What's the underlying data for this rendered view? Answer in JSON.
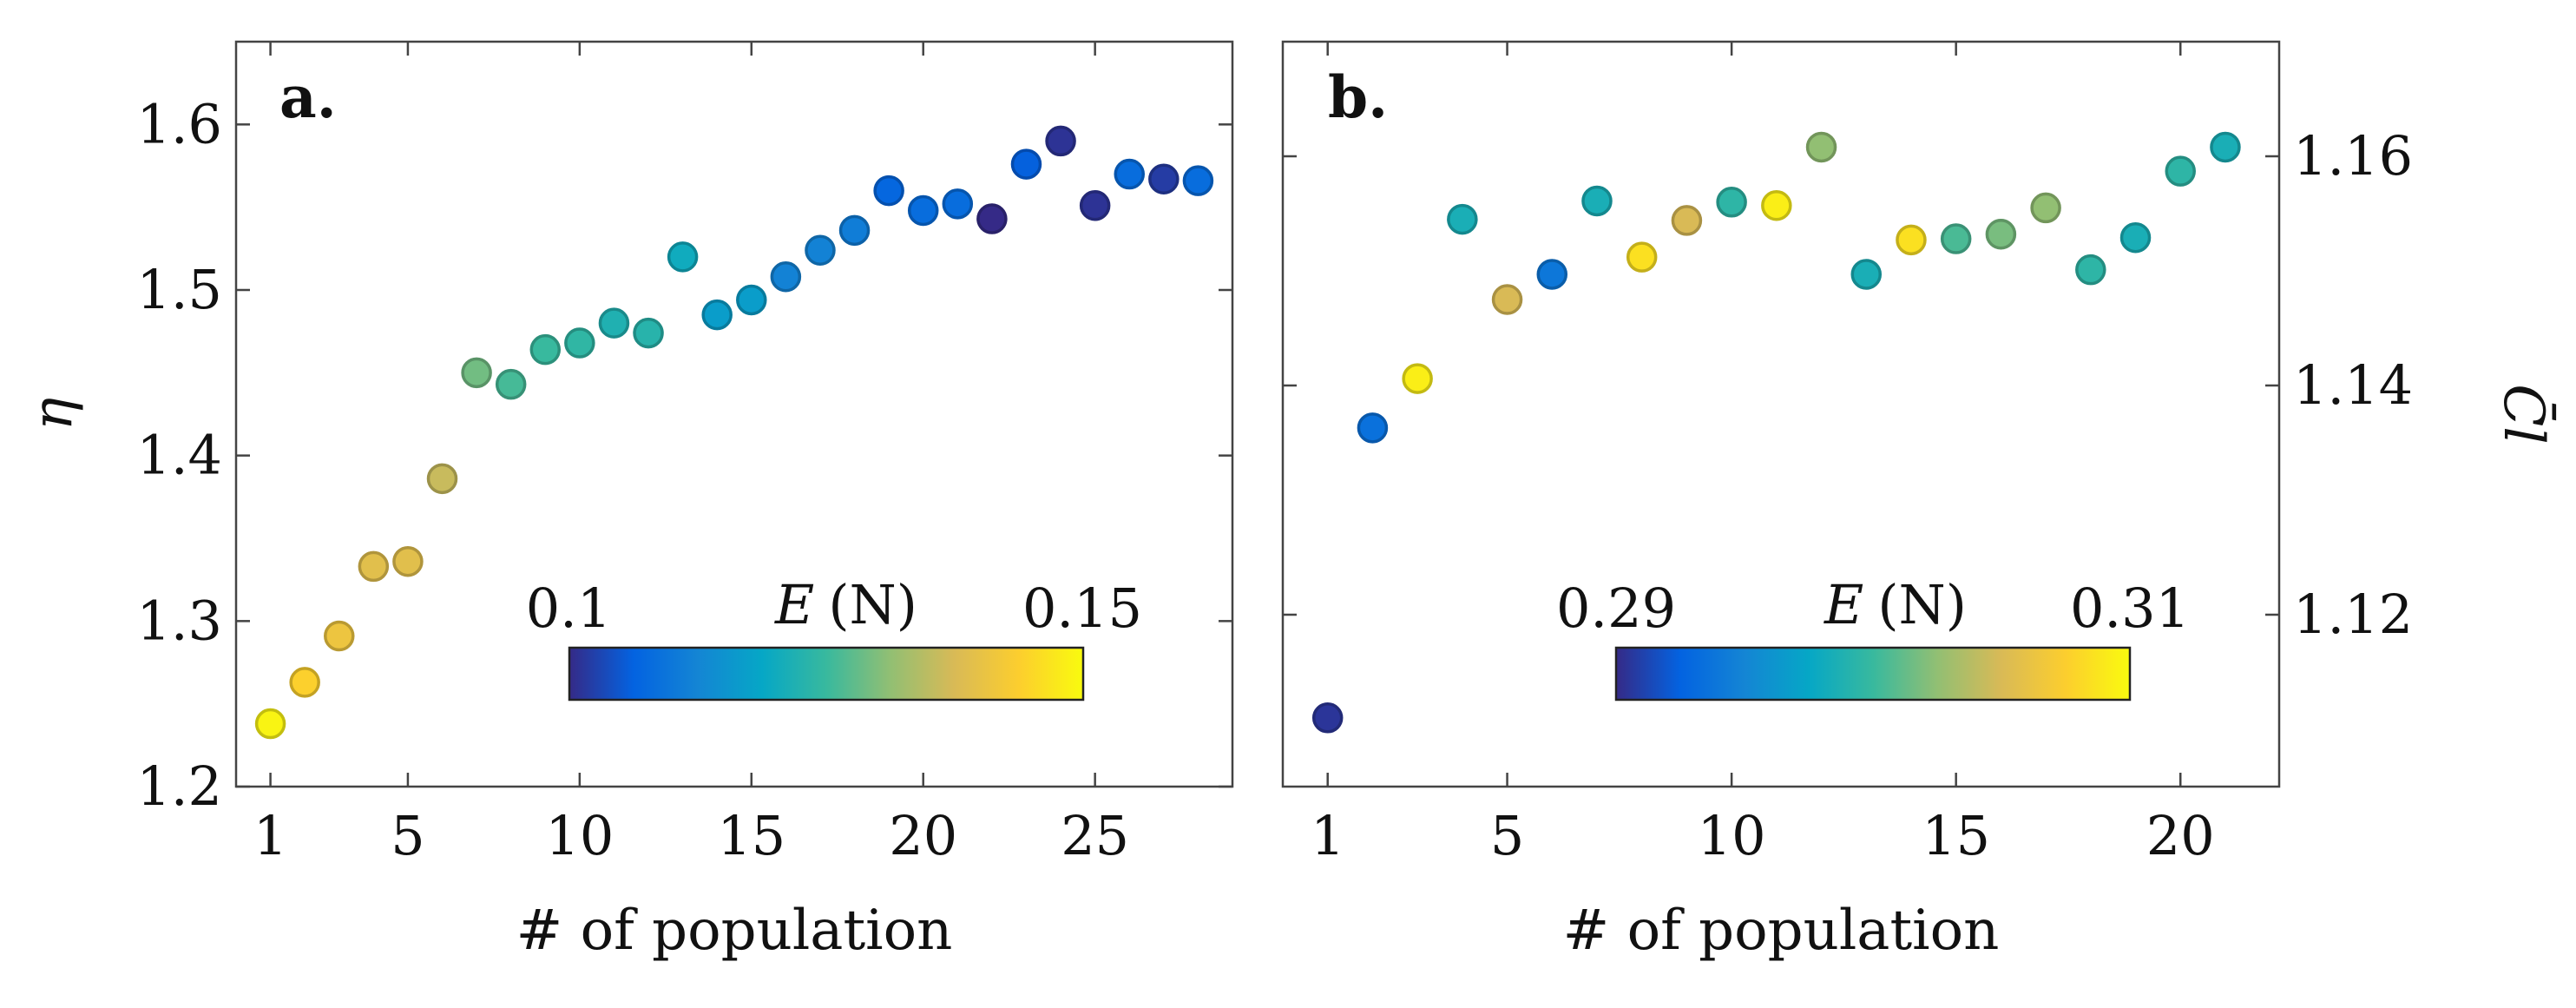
{
  "chart_data": [
    {
      "type": "scatter",
      "panel": "a.",
      "xlabel": "# of population",
      "ylabel": "η",
      "y_axis_side": "left",
      "xlim": [
        0,
        29
      ],
      "ylim": [
        1.2,
        1.65
      ],
      "xticks": [
        1,
        5,
        10,
        15,
        20,
        25
      ],
      "yticks": [
        1.2,
        1.3,
        1.4,
        1.5,
        1.6
      ],
      "ytick_labels": [
        "1.2",
        "1.3",
        "1.4",
        "1.5",
        "1.6"
      ],
      "colorbar": {
        "label_var": "E",
        "label_unit": "(N)",
        "min_label": "0.1",
        "max_label": "0.15",
        "min": 0.1,
        "max": 0.15,
        "colormap": [
          "#352a87",
          "#0363e1",
          "#1485d4",
          "#06a7c6",
          "#38b99e",
          "#92bf73",
          "#d9ba56",
          "#fcce2e",
          "#f9fb0e"
        ]
      },
      "x": [
        1,
        2,
        3,
        4,
        5,
        6,
        7,
        8,
        9,
        10,
        11,
        12,
        13,
        14,
        15,
        16,
        17,
        18,
        19,
        20,
        21,
        22,
        23,
        24,
        25,
        26,
        27,
        28
      ],
      "y": [
        1.238,
        1.263,
        1.291,
        1.333,
        1.336,
        1.386,
        1.45,
        1.443,
        1.464,
        1.468,
        1.48,
        1.474,
        1.52,
        1.485,
        1.494,
        1.508,
        1.524,
        1.536,
        1.56,
        1.548,
        1.552,
        1.543,
        1.576,
        1.59,
        1.551,
        1.57,
        1.567,
        1.566
      ],
      "c": [
        0.149,
        0.144,
        0.141,
        0.139,
        0.139,
        0.136,
        0.129,
        0.126,
        0.125,
        0.124,
        0.122,
        0.123,
        0.12,
        0.117,
        0.117,
        0.112,
        0.112,
        0.111,
        0.107,
        0.108,
        0.108,
        0.1,
        0.106,
        0.101,
        0.101,
        0.108,
        0.102,
        0.108
      ]
    },
    {
      "type": "scatter",
      "panel": "b.",
      "xlabel": "# of population",
      "ylabel": "C̄l",
      "y_axis_side": "right",
      "xlim": [
        0,
        22.2
      ],
      "ylim": [
        1.105,
        1.17
      ],
      "xticks": [
        1,
        5,
        10,
        15,
        20
      ],
      "yticks": [
        1.12,
        1.14,
        1.16
      ],
      "ytick_labels": [
        "1.12",
        "1.14",
        "1.16"
      ],
      "colorbar": {
        "label_var": "E",
        "label_unit": "(N)",
        "min_label": "0.29",
        "max_label": "0.31",
        "min": 0.29,
        "max": 0.31,
        "colormap": [
          "#352a87",
          "#0363e1",
          "#1485d4",
          "#06a7c6",
          "#38b99e",
          "#92bf73",
          "#d9ba56",
          "#fcce2e",
          "#f9fb0e"
        ]
      },
      "x": [
        1,
        2,
        3,
        4,
        5,
        6,
        7,
        8,
        9,
        10,
        11,
        12,
        13,
        14,
        15,
        16,
        17,
        18,
        19,
        20,
        21
      ],
      "y": [
        1.111,
        1.1363,
        1.1406,
        1.1545,
        1.1475,
        1.1497,
        1.1561,
        1.1512,
        1.1544,
        1.156,
        1.1557,
        1.1608,
        1.1497,
        1.1527,
        1.1528,
        1.1532,
        1.1555,
        1.1501,
        1.1529,
        1.1587,
        1.1608
      ],
      "c": [
        0.2905,
        0.2935,
        0.3093,
        0.2985,
        0.305,
        0.294,
        0.2985,
        0.3085,
        0.305,
        0.2995,
        0.3093,
        0.3025,
        0.2985,
        0.3085,
        0.3005,
        0.3018,
        0.3025,
        0.2995,
        0.2985,
        0.2995,
        0.2985
      ]
    }
  ]
}
